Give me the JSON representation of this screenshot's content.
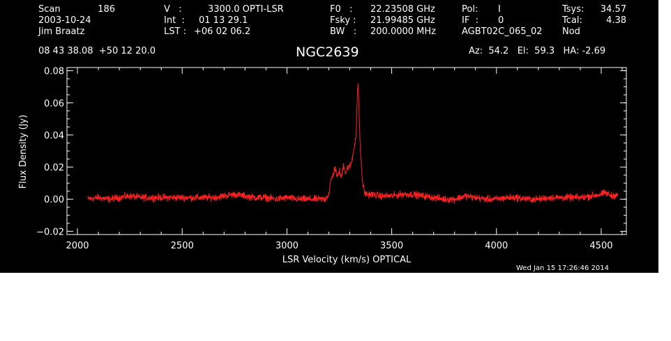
{
  "header": {
    "scan_label": "Scan",
    "scan_value": "186",
    "date": "2003-10-24",
    "observer": "Jim Braatz",
    "v_label": "V   :",
    "v_value": "3300.0 OPTI-LSR",
    "int_label": "Int  :",
    "int_value": "01 13 29.1",
    "lst_label": "LST :",
    "lst_value": "+06 02 06.2",
    "f0_label": "F0   :",
    "f0_value": "22.23508 GHz",
    "fsky_label": "Fsky :",
    "fsky_value": "21.99485 GHz",
    "bw_label": "BW   :",
    "bw_value": "200.0000 MHz",
    "pol_label": "Pol:",
    "pol_value": "I",
    "if_label": "IF  :",
    "if_value": "0",
    "project": "AGBT02C_065_02",
    "tsys_label": "Tsys:",
    "tsys_value": "34.57",
    "tcal_label": "Tcal:",
    "tcal_value": "4.38",
    "mode": "Nod",
    "coords": "08 43 38.08  +50 12 20.0",
    "source": "NGC2639",
    "pointing": "Az:  54.2   El:  59.3   HA: -2.69",
    "timestamp": "Wed Jan 15 17:26:46 2014"
  },
  "chart_data": {
    "type": "line",
    "xlabel": "LSR Velocity (km/s) OPTICAL",
    "ylabel": "Flux Density (Jy)",
    "xlim": [
      1950,
      4620
    ],
    "ylim": [
      -0.022,
      0.082
    ],
    "xticks": [
      2000,
      2500,
      3000,
      3500,
      4000,
      4500
    ],
    "yticks": [
      -0.02,
      0.0,
      0.02,
      0.04,
      0.06,
      0.08
    ],
    "ytick_labels": [
      "−0.02",
      "0.00",
      "0.02",
      "0.04",
      "0.06",
      "0.08"
    ],
    "series_color": "#ff2020",
    "series": [
      {
        "x": [
          2050,
          2100,
          2150,
          2200,
          2250,
          2300,
          2350,
          2400,
          2450,
          2500,
          2550,
          2600,
          2650,
          2700,
          2750,
          2800,
          2850,
          2900,
          2950,
          3000,
          3050,
          3100,
          3150,
          3180,
          3200,
          3210,
          3220,
          3230,
          3240,
          3250,
          3260,
          3270,
          3280,
          3290,
          3300,
          3310,
          3320,
          3330,
          3335,
          3340,
          3345,
          3350,
          3360,
          3370,
          3380,
          3400,
          3450,
          3500,
          3550,
          3600,
          3650,
          3700,
          3750,
          3800,
          3850,
          3900,
          3950,
          4000,
          4050,
          4100,
          4150,
          4200,
          4250,
          4300,
          4350,
          4400,
          4450,
          4500,
          4520,
          4550,
          4580
        ],
        "y": [
          0.0,
          0.001,
          0.0,
          0.001,
          0.002,
          0.001,
          0.001,
          0.001,
          0.001,
          0.001,
          0.001,
          0.001,
          0.001,
          0.002,
          0.003,
          0.002,
          0.001,
          0.001,
          0.0,
          0.001,
          0.0,
          0.0,
          0.0,
          0.0,
          0.003,
          0.012,
          0.015,
          0.02,
          0.013,
          0.018,
          0.013,
          0.022,
          0.016,
          0.02,
          0.02,
          0.024,
          0.032,
          0.04,
          0.06,
          0.073,
          0.05,
          0.032,
          0.012,
          0.004,
          0.003,
          0.003,
          0.002,
          0.002,
          0.003,
          0.003,
          0.002,
          0.001,
          0.0,
          0.0,
          0.002,
          0.001,
          0.0,
          0.0,
          0.001,
          0.001,
          0.0,
          0.0,
          0.001,
          0.001,
          0.001,
          0.001,
          0.002,
          0.003,
          0.004,
          0.002,
          0.003
        ]
      }
    ]
  }
}
